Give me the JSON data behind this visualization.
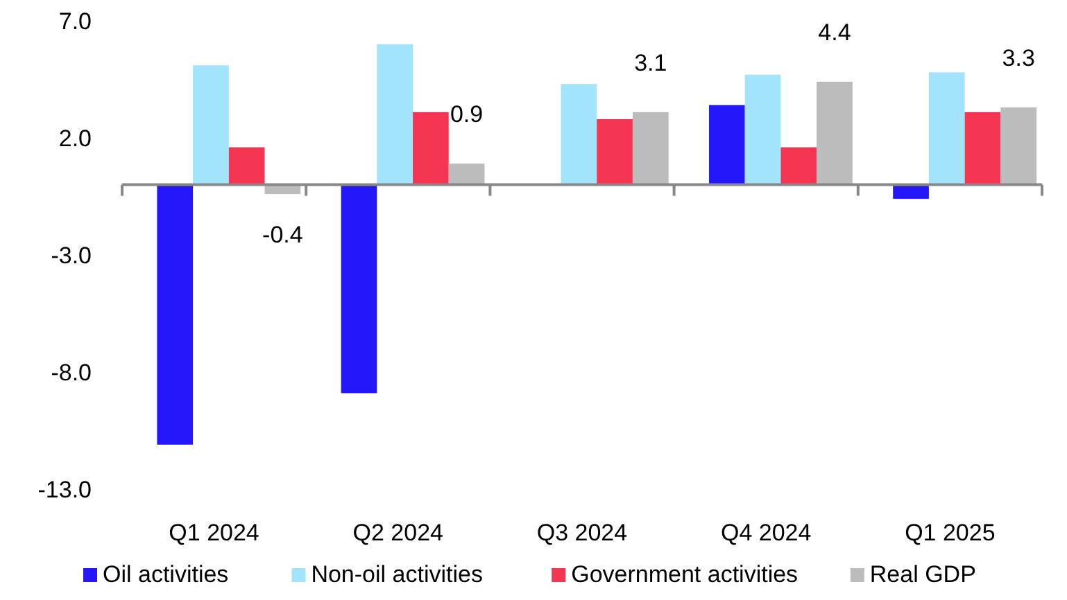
{
  "chart_data": {
    "type": "bar",
    "categories": [
      "Q1 2024",
      "Q2 2024",
      "Q3 2024",
      "Q4 2024",
      "Q1 2025"
    ],
    "series": [
      {
        "name": "Oil activities",
        "color": "#2418fa",
        "values": [
          -11.1,
          -8.9,
          0.0,
          3.4,
          -0.6
        ]
      },
      {
        "name": "Non-oil activities",
        "color": "#a3e4fd",
        "values": [
          5.1,
          6.0,
          4.3,
          4.7,
          4.8
        ]
      },
      {
        "name": "Government activities",
        "color": "#f43652",
        "values": [
          1.6,
          3.1,
          2.8,
          1.6,
          3.1
        ]
      },
      {
        "name": "Real GDP",
        "color": "#bcbcbc",
        "values": [
          -0.4,
          0.9,
          3.1,
          4.4,
          3.3
        ],
        "value_labels": [
          "-0.4",
          "0.9",
          "3.1",
          "4.4",
          "3.3"
        ]
      }
    ],
    "ylim": [
      -13,
      7
    ],
    "yticks": [
      {
        "value": 7,
        "label": "7.0"
      },
      {
        "value": 2,
        "label": "2.0"
      },
      {
        "value": -3,
        "label": "-3.0"
      },
      {
        "value": -8,
        "label": "-8.0"
      },
      {
        "value": -13,
        "label": "-13.0"
      }
    ],
    "grid": false,
    "legend": "bottom"
  }
}
